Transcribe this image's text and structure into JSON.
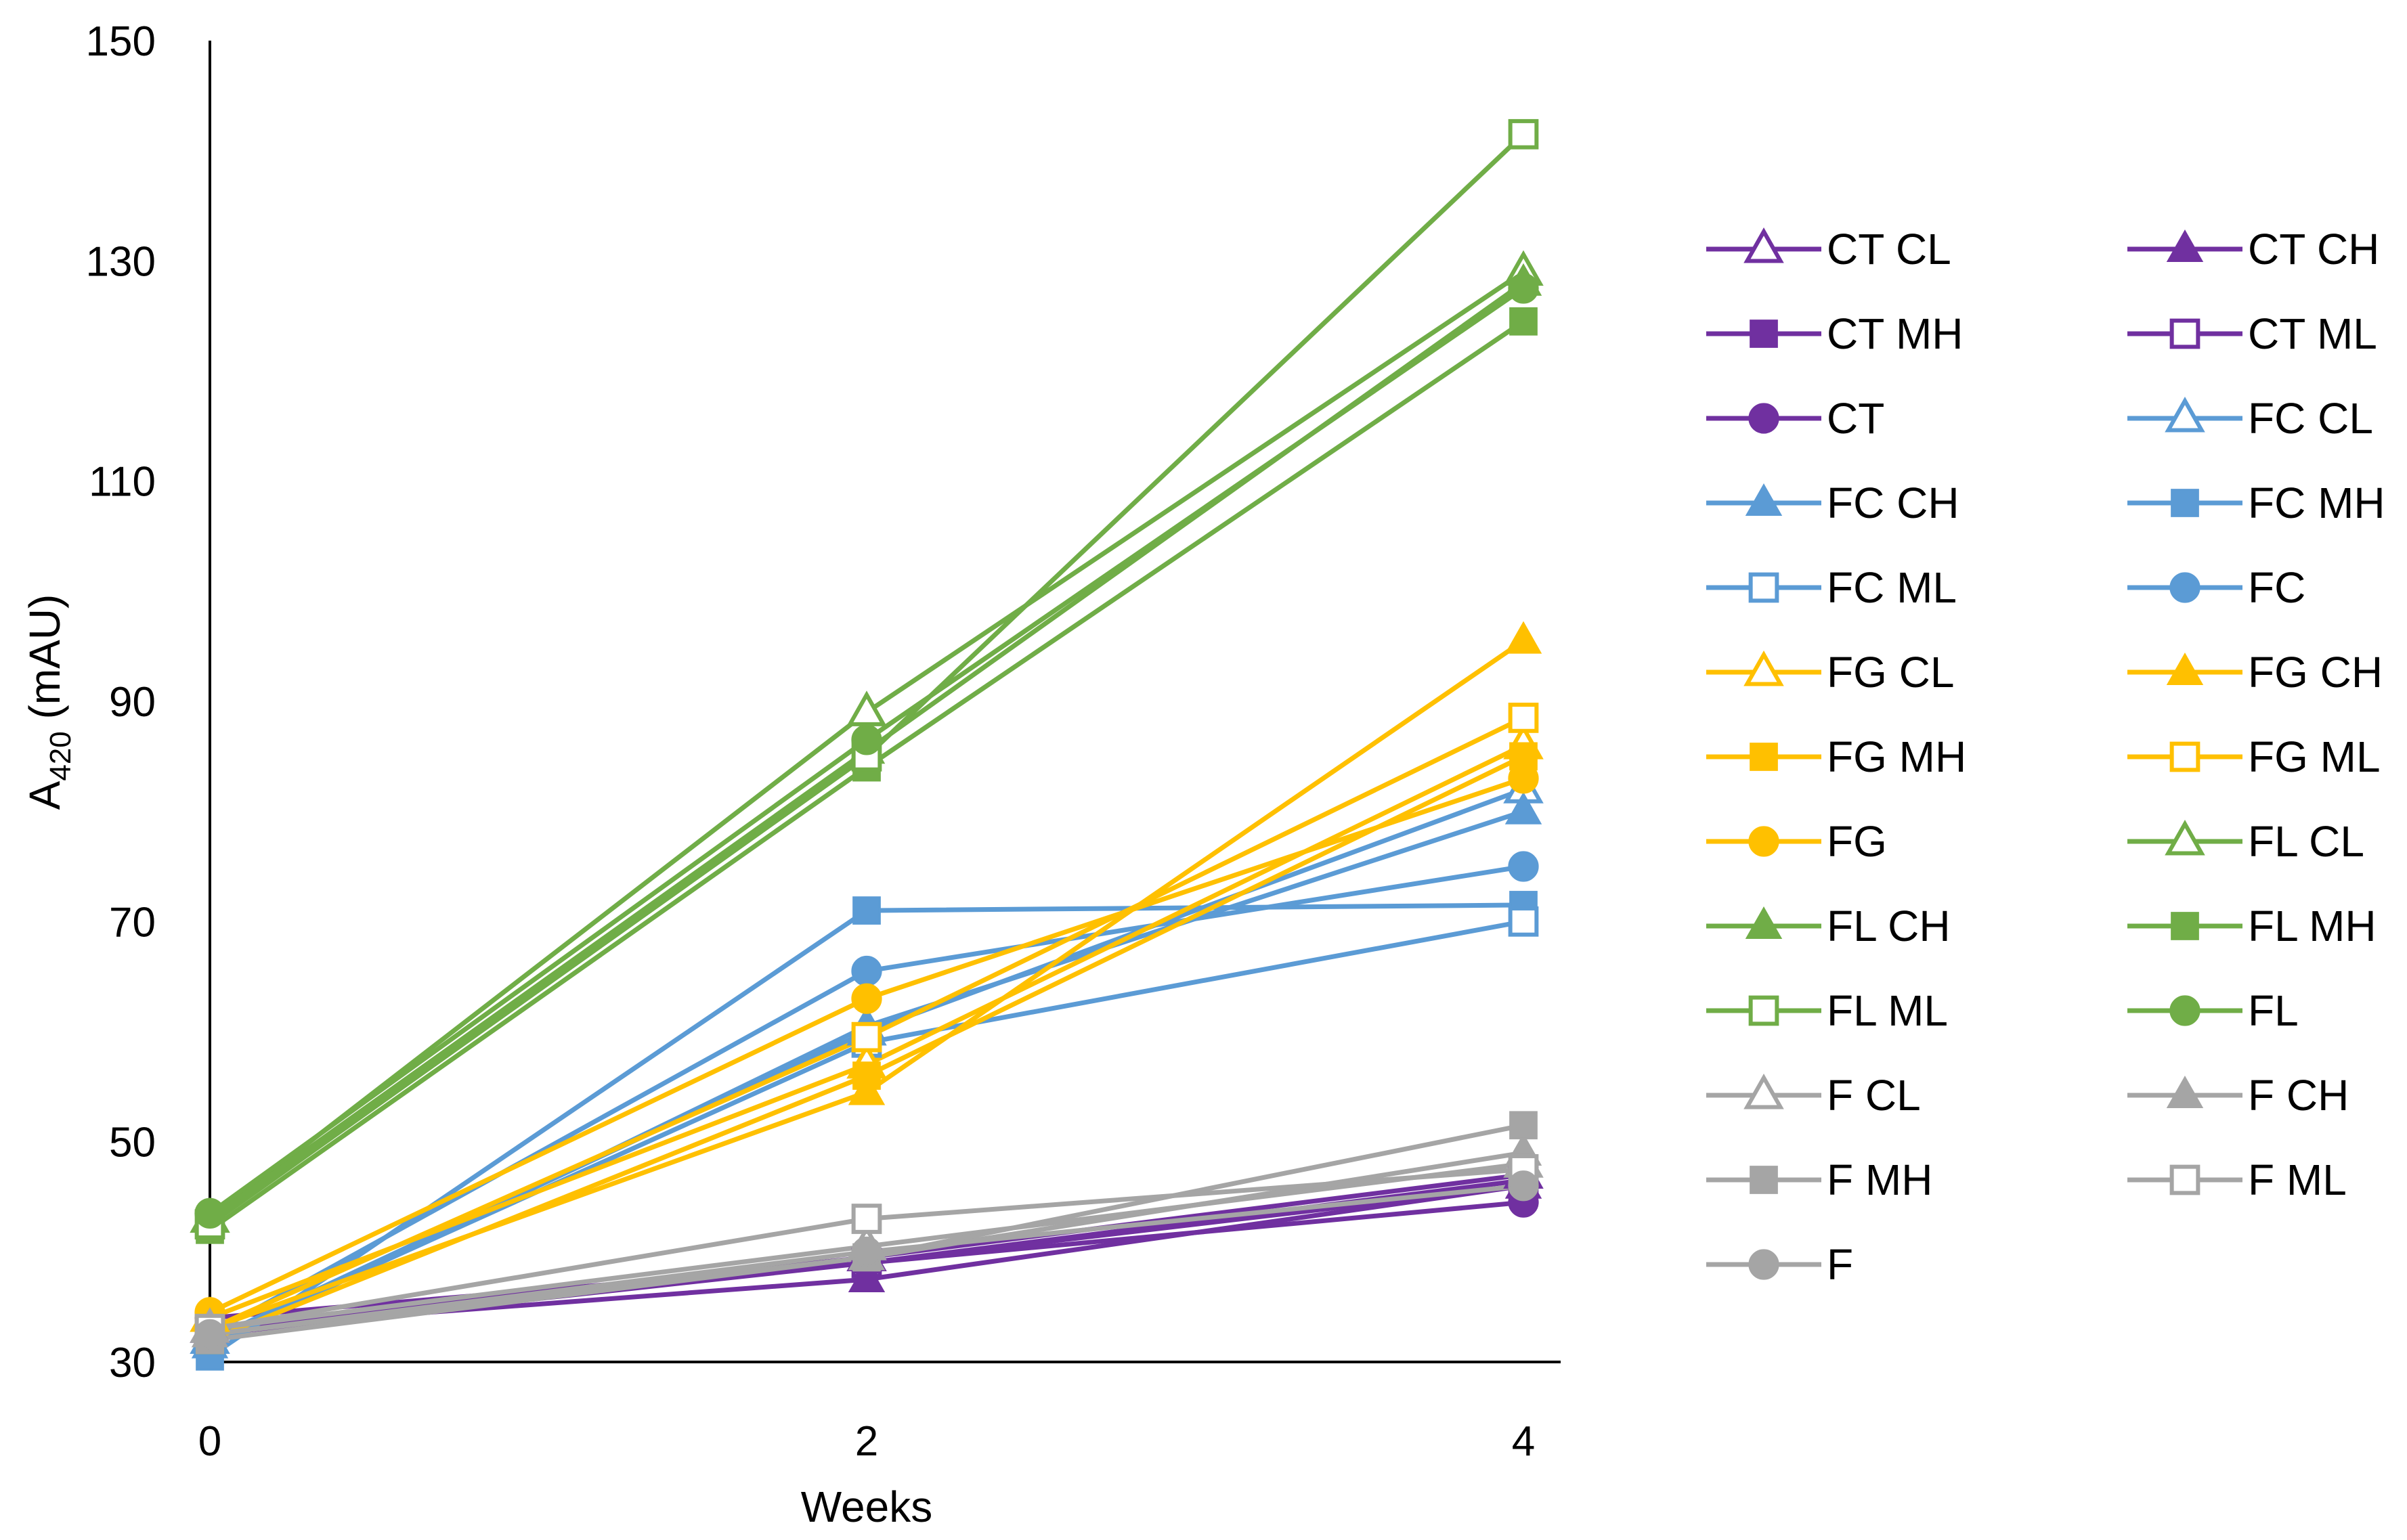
{
  "chart_data": {
    "type": "line",
    "title": "",
    "xlabel": "Weeks",
    "ylabel": "A",
    "ylabel_sub": "420",
    "ylabel_unit": " (mAU)",
    "x": [
      0,
      2,
      4
    ],
    "x_ticks": [
      "0",
      "2",
      "4"
    ],
    "y_ticks": [
      "30",
      "50",
      "70",
      "90",
      "110",
      "130",
      "150"
    ],
    "ylim": [
      30,
      150
    ],
    "xlim": [
      0,
      4
    ],
    "grid": false,
    "legend_position": "right",
    "series": [
      {
        "name": "CT CL",
        "values": [
          33,
          39.5,
          47
        ],
        "color": "#7030A0",
        "marker": "triangle",
        "filled": false
      },
      {
        "name": "CT CH",
        "values": [
          33,
          37.5,
          46
        ],
        "color": "#7030A0",
        "marker": "triangle",
        "filled": true
      },
      {
        "name": "CT MH",
        "values": [
          32.5,
          39,
          46
        ],
        "color": "#7030A0",
        "marker": "square",
        "filled": true
      },
      {
        "name": "CT ML",
        "values": [
          33,
          39,
          46.5
        ],
        "color": "#7030A0",
        "marker": "square",
        "filled": false
      },
      {
        "name": "CT",
        "values": [
          34,
          39,
          44.5
        ],
        "color": "#7030A0",
        "marker": "circle",
        "filled": true
      },
      {
        "name": "FC CL",
        "values": [
          32,
          60,
          82
        ],
        "color": "#5B9BD5",
        "marker": "triangle",
        "filled": false
      },
      {
        "name": "FC CH",
        "values": [
          31.5,
          60.5,
          80
        ],
        "color": "#5B9BD5",
        "marker": "triangle",
        "filled": true
      },
      {
        "name": "FC MH",
        "values": [
          30.5,
          71,
          71.5
        ],
        "color": "#5B9BD5",
        "marker": "square",
        "filled": true
      },
      {
        "name": "FC ML",
        "values": [
          32,
          59,
          70
        ],
        "color": "#5B9BD5",
        "marker": "square",
        "filled": false
      },
      {
        "name": "FC",
        "values": [
          32.5,
          65.5,
          75
        ],
        "color": "#5B9BD5",
        "marker": "circle",
        "filled": true
      },
      {
        "name": "FG CL",
        "values": [
          34,
          57,
          86
        ],
        "color": "#FFC000",
        "marker": "triangle",
        "filled": false
      },
      {
        "name": "FG CH",
        "values": [
          33,
          54.5,
          95.5
        ],
        "color": "#FFC000",
        "marker": "triangle",
        "filled": true
      },
      {
        "name": "FG MH",
        "values": [
          32,
          56,
          85
        ],
        "color": "#FFC000",
        "marker": "square",
        "filled": true
      },
      {
        "name": "FG ML",
        "values": [
          33,
          59.5,
          88.5
        ],
        "color": "#FFC000",
        "marker": "square",
        "filled": false
      },
      {
        "name": "FG",
        "values": [
          34.5,
          63,
          83
        ],
        "color": "#FFC000",
        "marker": "circle",
        "filled": true
      },
      {
        "name": "FL CL",
        "values": [
          43,
          89,
          129
        ],
        "color": "#70AD47",
        "marker": "triangle",
        "filled": false
      },
      {
        "name": "FL CH",
        "values": [
          43,
          85.5,
          128
        ],
        "color": "#70AD47",
        "marker": "triangle",
        "filled": true
      },
      {
        "name": "FL MH",
        "values": [
          42,
          84,
          124.5
        ],
        "color": "#70AD47",
        "marker": "square",
        "filled": true
      },
      {
        "name": "FL ML",
        "values": [
          42.5,
          85,
          141.5
        ],
        "color": "#70AD47",
        "marker": "square",
        "filled": false
      },
      {
        "name": "FL",
        "values": [
          43.5,
          86.5,
          127.5
        ],
        "color": "#70AD47",
        "marker": "circle",
        "filled": true
      },
      {
        "name": "F CL",
        "values": [
          33,
          40.5,
          48
        ],
        "color": "#A5A5A5",
        "marker": "triangle",
        "filled": false
      },
      {
        "name": "F CH",
        "values": [
          32.5,
          39.5,
          49
        ],
        "color": "#A5A5A5",
        "marker": "triangle",
        "filled": true
      },
      {
        "name": "F MH",
        "values": [
          32,
          39.5,
          51.5
        ],
        "color": "#A5A5A5",
        "marker": "square",
        "filled": true
      },
      {
        "name": "F ML",
        "values": [
          33,
          43,
          47.5
        ],
        "color": "#A5A5A5",
        "marker": "square",
        "filled": false
      },
      {
        "name": "F",
        "values": [
          32.5,
          40,
          46
        ],
        "color": "#A5A5A5",
        "marker": "circle",
        "filled": true
      }
    ]
  }
}
